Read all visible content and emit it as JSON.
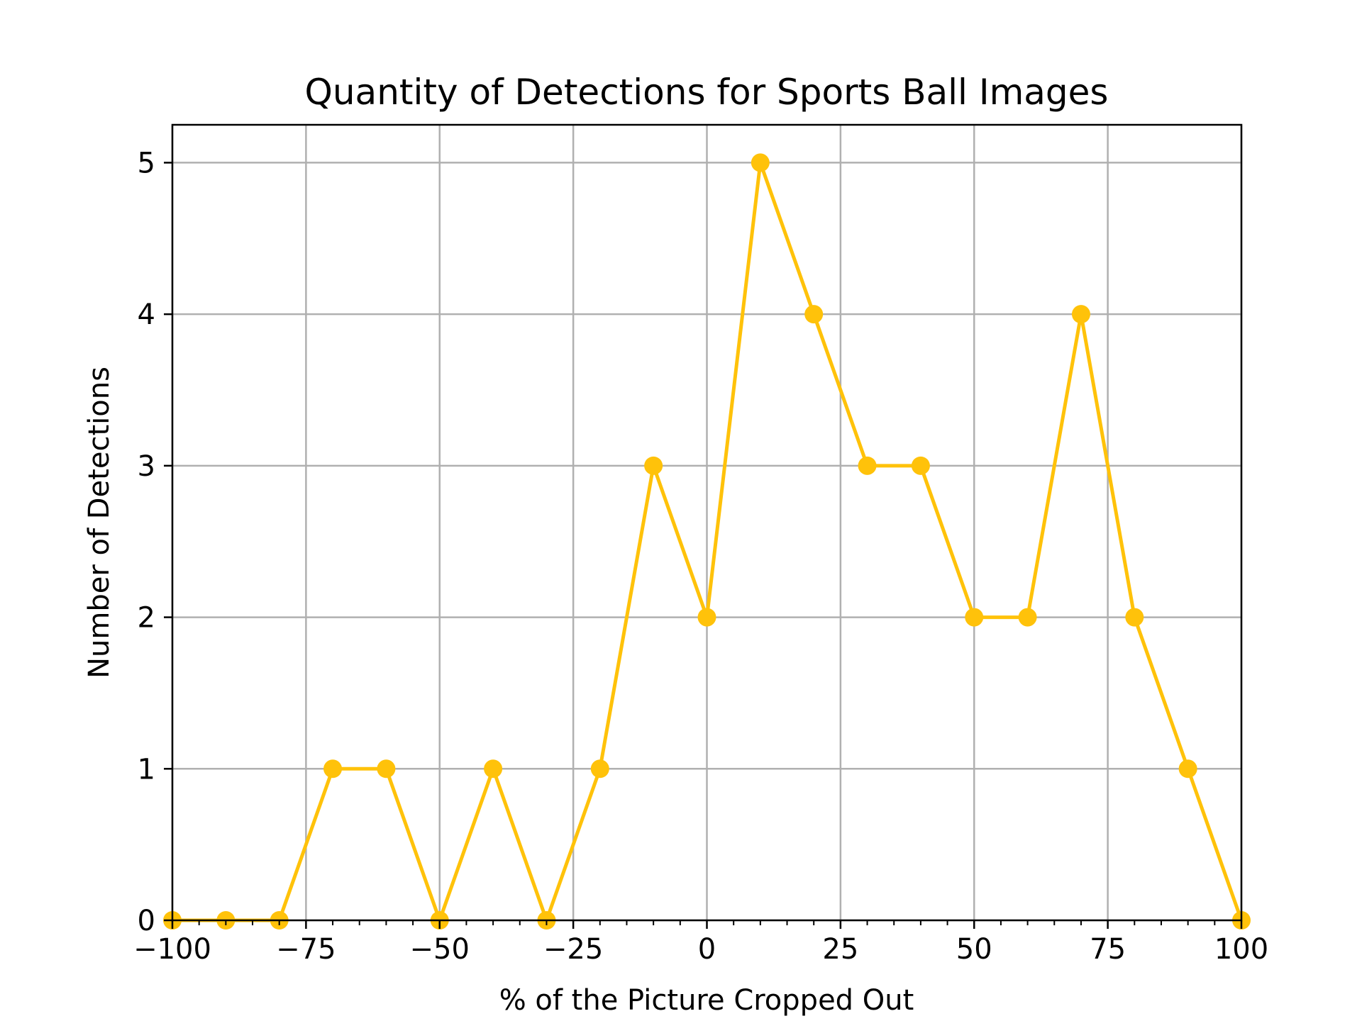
{
  "chart_data": {
    "type": "line",
    "title": "Quantity of Detections for Sports Ball Images",
    "xlabel": "% of the Picture Cropped Out",
    "ylabel": "Number of Detections",
    "xlim": [
      -100,
      100
    ],
    "ylim": [
      0,
      5.25
    ],
    "xticks": [
      -100,
      -75,
      -50,
      -25,
      0,
      25,
      50,
      75,
      100
    ],
    "xtick_labels": [
      "−100",
      "−75",
      "−50",
      "−25",
      "0",
      "25",
      "50",
      "75",
      "100"
    ],
    "yticks": [
      0,
      1,
      2,
      3,
      4,
      5
    ],
    "ytick_labels": [
      "0",
      "1",
      "2",
      "3",
      "4",
      "5"
    ],
    "grid": true,
    "color": "#ffc20a",
    "x": [
      -100,
      -90,
      -80,
      -70,
      -60,
      -50,
      -40,
      -30,
      -20,
      -10,
      0,
      10,
      20,
      30,
      40,
      50,
      60,
      70,
      80,
      90,
      100
    ],
    "y": [
      0,
      0,
      0,
      1,
      1,
      0,
      1,
      0,
      1,
      3,
      2,
      5,
      4,
      3,
      3,
      2,
      2,
      4,
      2,
      1,
      0
    ]
  }
}
